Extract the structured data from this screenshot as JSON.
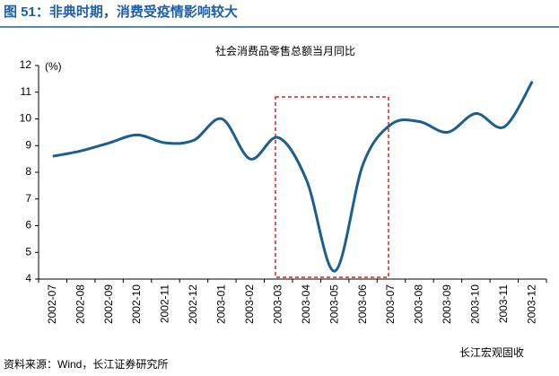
{
  "header": {
    "title": "图 51：非典时期，消费受疫情影响较大"
  },
  "chart_data": {
    "type": "line",
    "title": "社会消费品零售总额当月同比",
    "y_label": "(%)",
    "categories": [
      "2002-07",
      "2002-08",
      "2002-09",
      "2002-10",
      "2002-11",
      "2002-12",
      "2003-01",
      "2003-02",
      "2003-03",
      "2003-04",
      "2003-05",
      "2003-06",
      "2003-07",
      "2003-08",
      "2003-09",
      "2003-10",
      "2003-11",
      "2003-12"
    ],
    "series": [
      {
        "name": "社会消费品零售总额当月同比",
        "color": "#1c5f8e",
        "values": [
          8.6,
          8.8,
          9.1,
          9.4,
          9.1,
          9.2,
          10.0,
          8.5,
          9.3,
          7.7,
          4.3,
          8.3,
          9.8,
          9.9,
          9.5,
          10.2,
          9.7,
          11.4
        ]
      }
    ],
    "ylim": [
      4,
      12
    ],
    "yticks": [
      4,
      5,
      6,
      7,
      8,
      9,
      10,
      11,
      12
    ],
    "grid": false
  },
  "footer": {
    "source": "资料来源：Wind，长江证券研究所",
    "watermark": "长江宏观固收"
  }
}
